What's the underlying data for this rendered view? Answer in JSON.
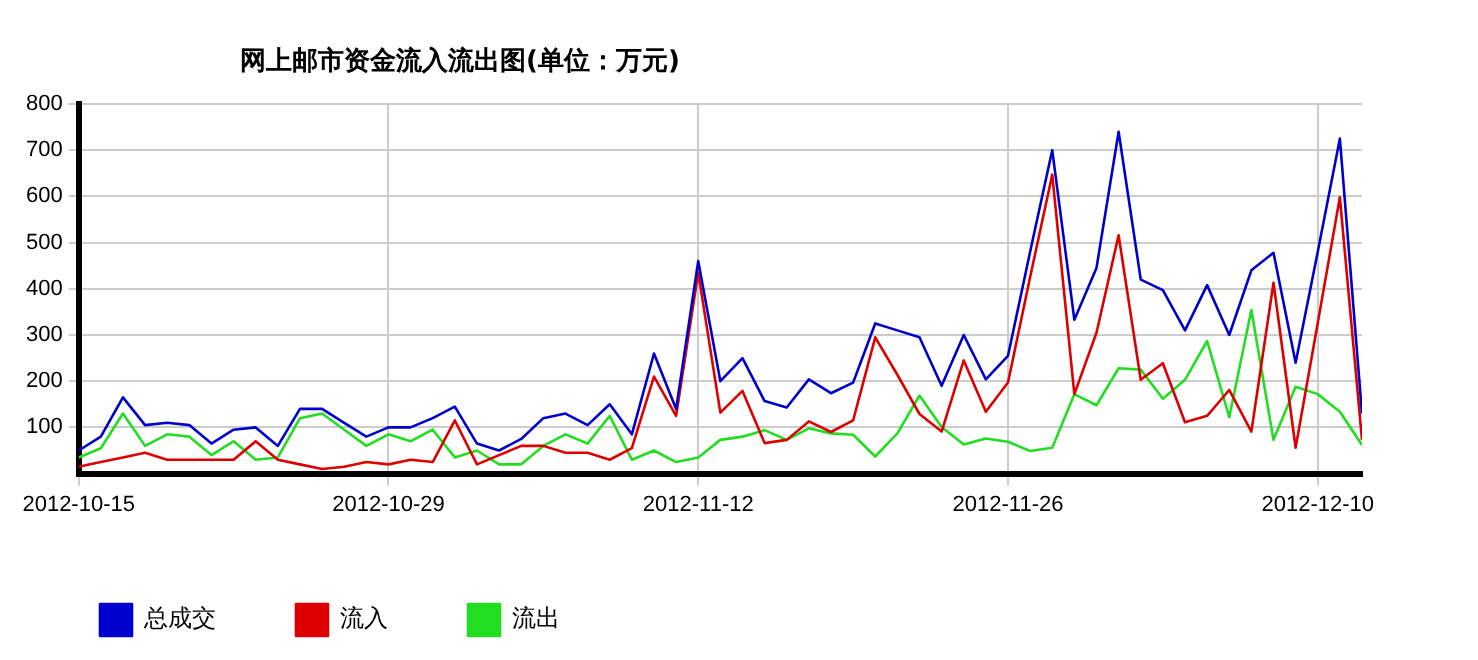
{
  "chart_data": {
    "type": "line",
    "title": "网上邮市资金流入流出图(单位：万元)",
    "x": [
      "2012-10-15",
      "2012-10-16",
      "2012-10-17",
      "2012-10-18",
      "2012-10-19",
      "2012-10-20",
      "2012-10-21",
      "2012-10-22",
      "2012-10-23",
      "2012-10-24",
      "2012-10-25",
      "2012-10-26",
      "2012-10-27",
      "2012-10-28",
      "2012-10-29",
      "2012-10-30",
      "2012-10-31",
      "2012-11-01",
      "2012-11-02",
      "2012-11-03",
      "2012-11-04",
      "2012-11-05",
      "2012-11-06",
      "2012-11-07",
      "2012-11-08",
      "2012-11-09",
      "2012-11-10",
      "2012-11-11",
      "2012-11-12",
      "2012-11-13",
      "2012-11-14",
      "2012-11-15",
      "2012-11-16",
      "2012-11-17",
      "2012-11-18",
      "2012-11-19",
      "2012-11-20",
      "2012-11-21",
      "2012-11-22",
      "2012-11-23",
      "2012-11-24",
      "2012-11-25",
      "2012-11-26",
      "2012-11-27",
      "2012-11-28",
      "2012-11-29",
      "2012-11-30",
      "2012-12-01",
      "2012-12-02",
      "2012-12-03",
      "2012-12-04",
      "2012-12-05",
      "2012-12-06",
      "2012-12-07",
      "2012-12-08",
      "2012-12-09",
      "2012-12-10",
      "2012-12-11",
      "2012-12-12"
    ],
    "series": [
      {
        "name": "总成交",
        "color": "#0000cc",
        "values": [
          50,
          80,
          165,
          105,
          110,
          105,
          65,
          95,
          100,
          60,
          140,
          140,
          110,
          80,
          100,
          100,
          120,
          145,
          65,
          50,
          75,
          120,
          130,
          105,
          150,
          85,
          260,
          140,
          460,
          200,
          250,
          157,
          143,
          204,
          174,
          197,
          325,
          310,
          295,
          190,
          300,
          204,
          255,
          480,
          700,
          333,
          445,
          740,
          420,
          397,
          310,
          408,
          300,
          440,
          478,
          240,
          480,
          725,
          130
        ]
      },
      {
        "name": "流入",
        "color": "#dd0000",
        "values": [
          15,
          25,
          35,
          45,
          30,
          30,
          30,
          30,
          70,
          30,
          20,
          10,
          15,
          25,
          20,
          30,
          25,
          115,
          20,
          40,
          60,
          60,
          45,
          45,
          30,
          55,
          210,
          125,
          435,
          132,
          179,
          66,
          73,
          113,
          90,
          115,
          295,
          214,
          129,
          91,
          245,
          134,
          197,
          425,
          647,
          172,
          305,
          516,
          203,
          239,
          111,
          125,
          181,
          91,
          413,
          56,
          326,
          598,
          73
        ]
      },
      {
        "name": "流出",
        "color": "#22dd22",
        "values": [
          35,
          55,
          130,
          60,
          85,
          80,
          40,
          70,
          30,
          35,
          120,
          130,
          95,
          60,
          85,
          70,
          95,
          35,
          50,
          20,
          20,
          60,
          85,
          65,
          125,
          30,
          50,
          25,
          35,
          73,
          80,
          94,
          73,
          98,
          87,
          84,
          37,
          87,
          169,
          101,
          63,
          76,
          69,
          49,
          56,
          172,
          148,
          228,
          225,
          162,
          203,
          287,
          122,
          354,
          73,
          188,
          172,
          134,
          62
        ]
      }
    ],
    "xlim": [
      "2012-10-15",
      "2012-12-12"
    ],
    "xticks": [
      "2012-10-15",
      "2012-10-29",
      "2012-11-12",
      "2012-11-26",
      "2012-12-10"
    ],
    "ylim": [
      0,
      800
    ],
    "yticks": [
      100,
      200,
      300,
      400,
      500,
      600,
      700,
      800
    ],
    "grid": true,
    "legend": "bottom",
    "marker": "none",
    "line_style": "solid"
  }
}
